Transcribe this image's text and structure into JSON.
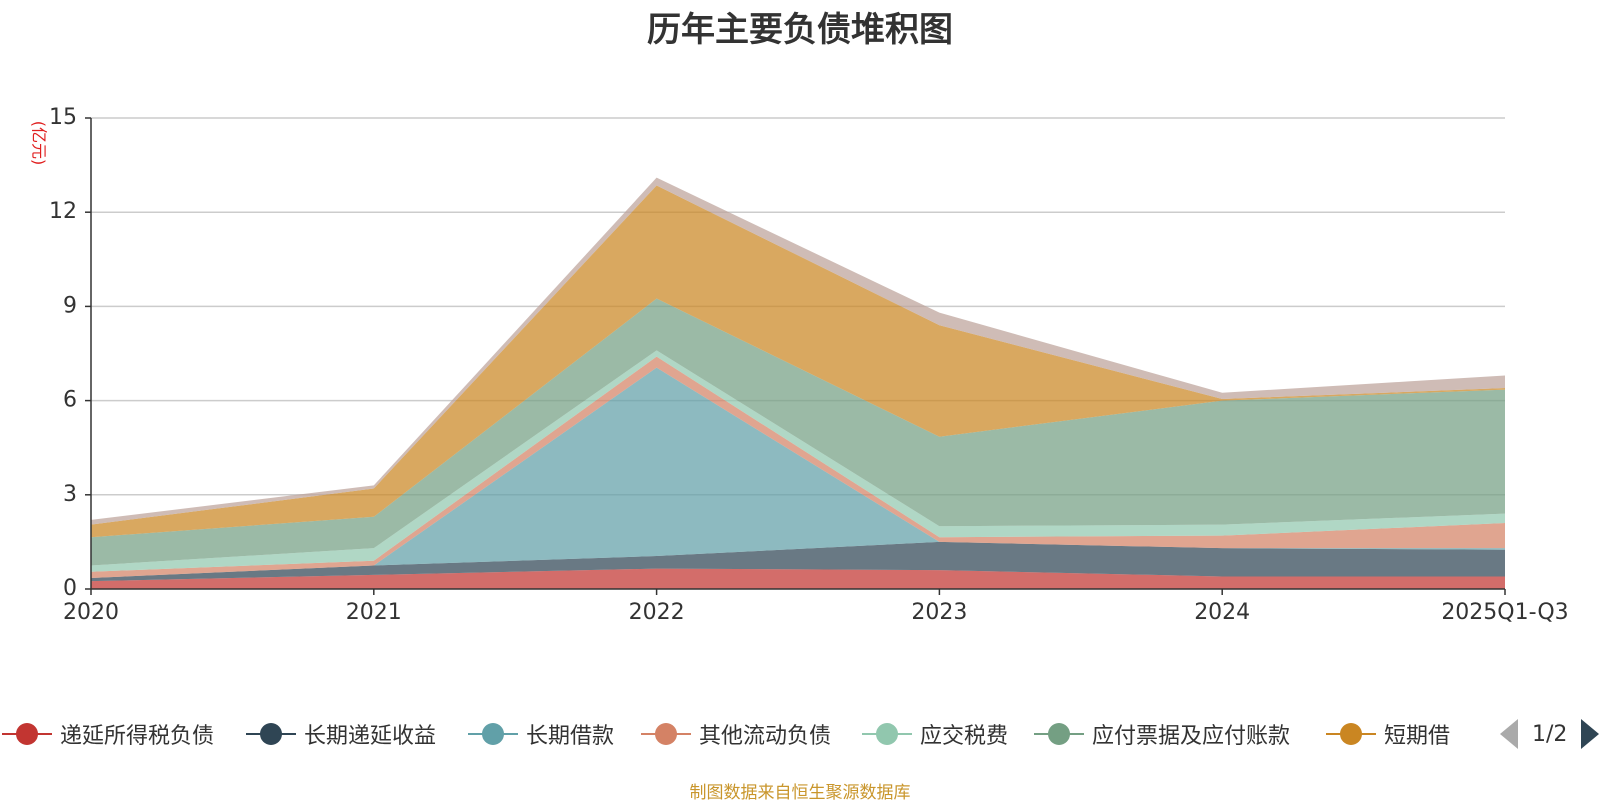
{
  "chart_data": {
    "type": "area",
    "title": "历年主要负债堆积图",
    "ylabel": "(亿元)",
    "stacked": true,
    "ylim": [
      0,
      15
    ],
    "yticks": [
      0,
      3,
      6,
      9,
      12,
      15
    ],
    "grid": true,
    "legend_position": "bottom",
    "categories": [
      "2020",
      "2021",
      "2022",
      "2023",
      "2024",
      "2025Q1-Q3"
    ],
    "series": [
      {
        "name": "递延所得税负债",
        "color": "#c23531",
        "values": [
          0.25,
          0.45,
          0.65,
          0.6,
          0.4,
          0.4
        ]
      },
      {
        "name": "长期递延收益",
        "color": "#2f4554",
        "values": [
          0.1,
          0.3,
          0.4,
          0.9,
          0.9,
          0.85
        ]
      },
      {
        "name": "长期借款",
        "color": "#61a0a8",
        "values": [
          0.0,
          0.0,
          6.0,
          0.0,
          0.0,
          0.05
        ]
      },
      {
        "name": "其他流动负债",
        "color": "#d48265",
        "values": [
          0.2,
          0.15,
          0.35,
          0.15,
          0.4,
          0.8
        ]
      },
      {
        "name": "应交税费",
        "color": "#91c7ae",
        "values": [
          0.2,
          0.4,
          0.2,
          0.35,
          0.35,
          0.3
        ]
      },
      {
        "name": "应付票据及应付账款",
        "color": "#749f83",
        "values": [
          0.9,
          1.0,
          1.65,
          2.85,
          3.95,
          3.95
        ]
      },
      {
        "name": "短期借",
        "color": "#ca8622",
        "values": [
          0.4,
          0.9,
          3.6,
          3.55,
          0.05,
          0.05
        ]
      },
      {
        "name": "",
        "color": "#bda29a",
        "values": [
          0.15,
          0.1,
          0.25,
          0.4,
          0.2,
          0.4
        ]
      }
    ]
  },
  "legend": {
    "page_indicator": "1/2",
    "visible_count": 7
  },
  "source_note": "制图数据来自恒生聚源数据库"
}
